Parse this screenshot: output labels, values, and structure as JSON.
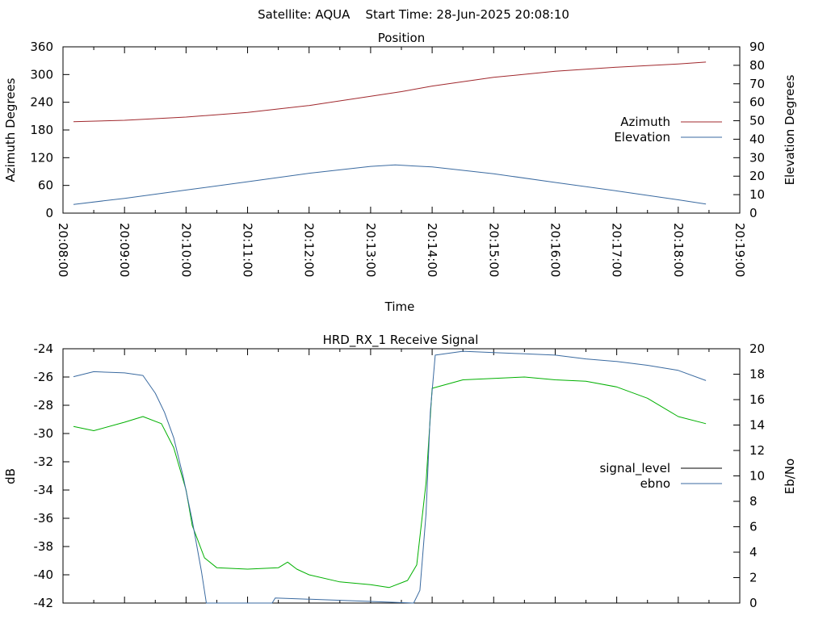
{
  "header": {
    "title": "Satellite: AQUA    Start Time: 28-Jun-2025 20:08:10"
  },
  "colors": {
    "azimuth": "#a0282d",
    "elevation": "#3a6aa0",
    "signal_level": "#000000",
    "ebno": "#3a6aa0",
    "green_trace": "#00b000",
    "frame": "#000000"
  },
  "chart_data": [
    {
      "type": "line",
      "title": "Position",
      "xlabel": "Time",
      "ylabel": "Azimuth Degrees",
      "y2label": "Elevation Degrees",
      "x_ticks": [
        "20:08:00",
        "20:09:00",
        "20:10:00",
        "20:11:00",
        "20:12:00",
        "20:13:00",
        "20:14:00",
        "20:15:00",
        "20:16:00",
        "20:17:00",
        "20:18:00",
        "20:19:00"
      ],
      "xlim_minutes": [
        0,
        11
      ],
      "ylim": [
        0,
        360
      ],
      "y_ticks": [
        0,
        60,
        120,
        180,
        240,
        300,
        360
      ],
      "y2lim": [
        0,
        90
      ],
      "y2_ticks": [
        0,
        10,
        20,
        30,
        40,
        50,
        60,
        70,
        80,
        90
      ],
      "legend_placement": "right",
      "grid": false,
      "series": [
        {
          "name": "Azimuth",
          "axis": "left",
          "color_key": "azimuth",
          "x": [
            0.17,
            1,
            2,
            3,
            4,
            5,
            5.5,
            6,
            7,
            8,
            9,
            10,
            10.45
          ],
          "y": [
            198,
            201,
            208,
            218,
            233,
            253,
            263,
            275,
            294,
            307,
            316,
            323,
            327
          ]
        },
        {
          "name": "Elevation",
          "axis": "right",
          "color_key": "elevation",
          "x": [
            0.17,
            1,
            2,
            3,
            4,
            5,
            5.4,
            6,
            7,
            8,
            9,
            10,
            10.45
          ],
          "y": [
            4.7,
            8,
            12.5,
            17,
            21.6,
            25.3,
            26.1,
            25,
            21.3,
            16.6,
            12,
            7.2,
            4.9
          ]
        }
      ]
    },
    {
      "type": "line",
      "title": "HRD_RX_1 Receive Signal",
      "xlabel": "",
      "ylabel": "dB",
      "y2label": "Eb/No",
      "xlim_minutes": [
        0,
        11
      ],
      "ylim": [
        -42,
        -24
      ],
      "y_ticks": [
        -42,
        -40,
        -38,
        -36,
        -34,
        -32,
        -30,
        -28,
        -26,
        -24
      ],
      "y2lim": [
        0,
        20
      ],
      "y2_ticks": [
        0,
        2,
        4,
        6,
        8,
        10,
        12,
        14,
        16,
        18,
        20
      ],
      "legend_placement": "right",
      "grid": false,
      "series": [
        {
          "name": "signal_level",
          "axis": "left",
          "color_key": "green_trace",
          "x": [
            0.17,
            0.5,
            1.0,
            1.3,
            1.6,
            1.8,
            2.0,
            2.1,
            2.3,
            2.5,
            3.0,
            3.5,
            3.65,
            3.8,
            4.0,
            4.5,
            5.0,
            5.3,
            5.6,
            5.75,
            5.9,
            6.0,
            6.5,
            7.0,
            7.5,
            8.0,
            8.5,
            9.0,
            9.5,
            10.0,
            10.45
          ],
          "y": [
            -29.5,
            -29.8,
            -29.2,
            -28.8,
            -29.3,
            -31.0,
            -34.0,
            -36.5,
            -38.8,
            -39.5,
            -39.6,
            -39.5,
            -39.1,
            -39.6,
            -40.0,
            -40.5,
            -40.7,
            -40.9,
            -40.4,
            -39.3,
            -33.5,
            -26.8,
            -26.2,
            -26.1,
            -26.0,
            -26.2,
            -26.3,
            -26.7,
            -27.5,
            -28.8,
            -29.3
          ]
        },
        {
          "name": "ebno",
          "axis": "right",
          "color_key": "ebno",
          "x": [
            0.17,
            0.5,
            1.0,
            1.3,
            1.5,
            1.65,
            1.8,
            1.95,
            2.1,
            2.25,
            2.33,
            3.4,
            3.45,
            5.7,
            5.8,
            5.9,
            5.97,
            6.05,
            6.5,
            7.0,
            7.5,
            8.0,
            8.5,
            9.0,
            9.5,
            10.0,
            10.45
          ],
          "y": [
            17.8,
            18.2,
            18.1,
            17.9,
            16.5,
            15.0,
            13.0,
            10.0,
            6.5,
            2.5,
            0.0,
            0.0,
            0.4,
            0.0,
            1.0,
            7.0,
            15.0,
            19.5,
            19.8,
            19.7,
            19.6,
            19.5,
            19.2,
            19.0,
            18.7,
            18.3,
            17.5
          ]
        }
      ]
    }
  ]
}
